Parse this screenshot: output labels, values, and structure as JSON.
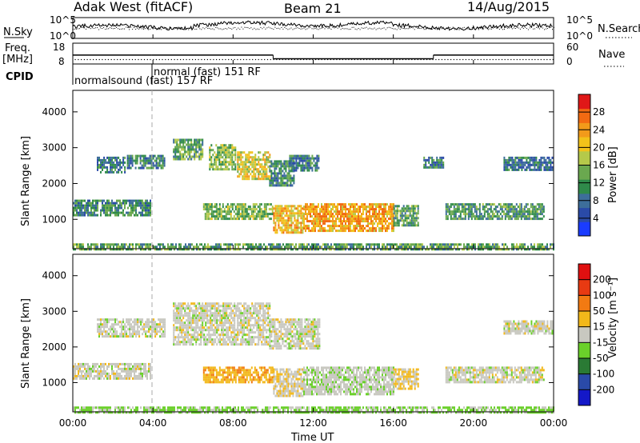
{
  "header": {
    "station": "Adak West (fitACF)",
    "beam": "Beam 21",
    "date": "14/Aug/2015"
  },
  "noise_panel": {
    "left_label": "N.Sky",
    "right_label": "N.Search",
    "left_ticks": [
      "10^5",
      "10^0"
    ],
    "right_ticks": [
      "10^5",
      "10^0"
    ]
  },
  "freq_panel": {
    "left_label_line1": "Freq.",
    "left_label_line2": "[MHz]",
    "cpid_label": "CPID",
    "right_label": "Nave",
    "left_ticks": [
      "18",
      "8"
    ],
    "right_ticks": [
      "60",
      "0"
    ],
    "cpid_text_1": "normalsound (fast) 157 RF",
    "cpid_text_2": "normal (fast)  151 RF",
    "freq_levels": [
      {
        "start_hour": 0,
        "end_hour": 3.95,
        "mhz": 12.3
      },
      {
        "start_hour": 3.95,
        "end_hour": 10.0,
        "mhz": 12.3
      },
      {
        "start_hour": 10.0,
        "end_hour": 18.0,
        "mhz": 10.5
      },
      {
        "start_hour": 18.0,
        "end_hour": 24.0,
        "mhz": 12.3
      }
    ],
    "nave_level": 14
  },
  "power_panel": {
    "ylabel": "Slant Range [km]",
    "yticks": [
      "1000",
      "2000",
      "3000",
      "4000"
    ],
    "colorbar_label": "Power [dB]",
    "colorbar_ticks": [
      "4",
      "8",
      "12",
      "16",
      "20",
      "24",
      "28"
    ]
  },
  "velocity_panel": {
    "ylabel": "Slant Range [km]",
    "yticks": [
      "1000",
      "2000",
      "3000",
      "4000"
    ],
    "colorbar_label": "Velocity [m s⁻¹]",
    "colorbar_ticks": [
      "200",
      "100",
      "50",
      "15",
      "-15",
      "-50",
      "-100",
      "-200"
    ]
  },
  "xaxis": {
    "label": "Time UT",
    "ticks": [
      "00:00",
      "04:00",
      "08:00",
      "12:00",
      "16:00",
      "20:00",
      "00:00"
    ]
  },
  "colors": {
    "power_scale": [
      "#1a3cff",
      "#2a4aa8",
      "#3d6e9a",
      "#2f8a4a",
      "#6aa84f",
      "#b5c94a",
      "#f2c21a",
      "#f29a1a",
      "#f26a12",
      "#e01818"
    ],
    "velocity_scale": [
      "#1418c8",
      "#2a4aa8",
      "#2a7a34",
      "#6ad02a",
      "#c8c8c0",
      "#f2b81a",
      "#f27a12",
      "#e83a12",
      "#e01010"
    ]
  },
  "chart_data": [
    {
      "type": "heatmap",
      "title": "Power [dB]",
      "xlabel": "Time UT",
      "ylabel": "Slant Range [km]",
      "xlim": [
        0,
        24
      ],
      "ylim": [
        180,
        4600
      ],
      "zlim": [
        0,
        30
      ],
      "regions": [
        {
          "t0": 0.0,
          "t1": 3.9,
          "r0": 1100,
          "r1": 1550,
          "db": 10
        },
        {
          "t0": 1.2,
          "t1": 2.6,
          "r0": 2300,
          "r1": 2750,
          "db": 8
        },
        {
          "t0": 2.7,
          "t1": 4.6,
          "r0": 2450,
          "r1": 2800,
          "db": 9
        },
        {
          "t0": 5.0,
          "t1": 6.5,
          "r0": 2700,
          "r1": 3250,
          "db": 12
        },
        {
          "t0": 6.8,
          "t1": 8.1,
          "r0": 2400,
          "r1": 3100,
          "db": 14
        },
        {
          "t0": 8.2,
          "t1": 9.8,
          "r0": 2100,
          "r1": 2900,
          "db": 18
        },
        {
          "t0": 9.8,
          "t1": 11.0,
          "r0": 1950,
          "r1": 2650,
          "db": 10
        },
        {
          "t0": 10.8,
          "t1": 12.3,
          "r0": 2350,
          "r1": 2800,
          "db": 9
        },
        {
          "t0": 6.5,
          "t1": 10.0,
          "r0": 1000,
          "r1": 1450,
          "db": 14
        },
        {
          "t0": 10.0,
          "t1": 11.5,
          "r0": 650,
          "r1": 1400,
          "db": 20
        },
        {
          "t0": 11.5,
          "t1": 16.0,
          "r0": 650,
          "r1": 1450,
          "db": 22
        },
        {
          "t0": 16.0,
          "t1": 17.2,
          "r0": 850,
          "r1": 1400,
          "db": 12
        },
        {
          "t0": 17.5,
          "t1": 18.5,
          "r0": 2450,
          "r1": 2750,
          "db": 8
        },
        {
          "t0": 18.6,
          "t1": 23.5,
          "r0": 1000,
          "r1": 1450,
          "db": 11
        },
        {
          "t0": 21.5,
          "t1": 23.9,
          "r0": 2400,
          "r1": 2750,
          "db": 8
        },
        {
          "t0": 0.0,
          "t1": 24.0,
          "r0": 180,
          "r1": 330,
          "db": 12
        }
      ]
    },
    {
      "type": "heatmap",
      "title": "Velocity [m s⁻¹]",
      "xlabel": "Time UT",
      "ylabel": "Slant Range [km]",
      "xlim": [
        0,
        24
      ],
      "ylim": [
        180,
        4600
      ],
      "zlim": [
        -200,
        200
      ],
      "regions": [
        {
          "t0": 0.0,
          "t1": 3.9,
          "r0": 1100,
          "r1": 1550,
          "v": 0
        },
        {
          "t0": 1.2,
          "t1": 4.6,
          "r0": 2300,
          "r1": 2800,
          "v": 0
        },
        {
          "t0": 5.0,
          "t1": 9.8,
          "r0": 2100,
          "r1": 3250,
          "v": 0
        },
        {
          "t0": 9.8,
          "t1": 12.3,
          "r0": 1950,
          "r1": 2800,
          "v": 0
        },
        {
          "t0": 6.5,
          "t1": 10.0,
          "r0": 1000,
          "r1": 1450,
          "v": -40
        },
        {
          "t0": 10.0,
          "t1": 11.5,
          "r0": 650,
          "r1": 1400,
          "v": -10
        },
        {
          "t0": 11.5,
          "t1": 16.0,
          "r0": 650,
          "r1": 1450,
          "v": 5
        },
        {
          "t0": 16.0,
          "t1": 17.2,
          "r0": 850,
          "r1": 1400,
          "v": -20
        },
        {
          "t0": 18.6,
          "t1": 23.5,
          "r0": 1000,
          "r1": 1450,
          "v": 0
        },
        {
          "t0": 21.5,
          "t1": 23.9,
          "r0": 2400,
          "r1": 2750,
          "v": 0
        },
        {
          "t0": 0.0,
          "t1": 24.0,
          "r0": 180,
          "r1": 330,
          "v": 20
        }
      ]
    }
  ]
}
